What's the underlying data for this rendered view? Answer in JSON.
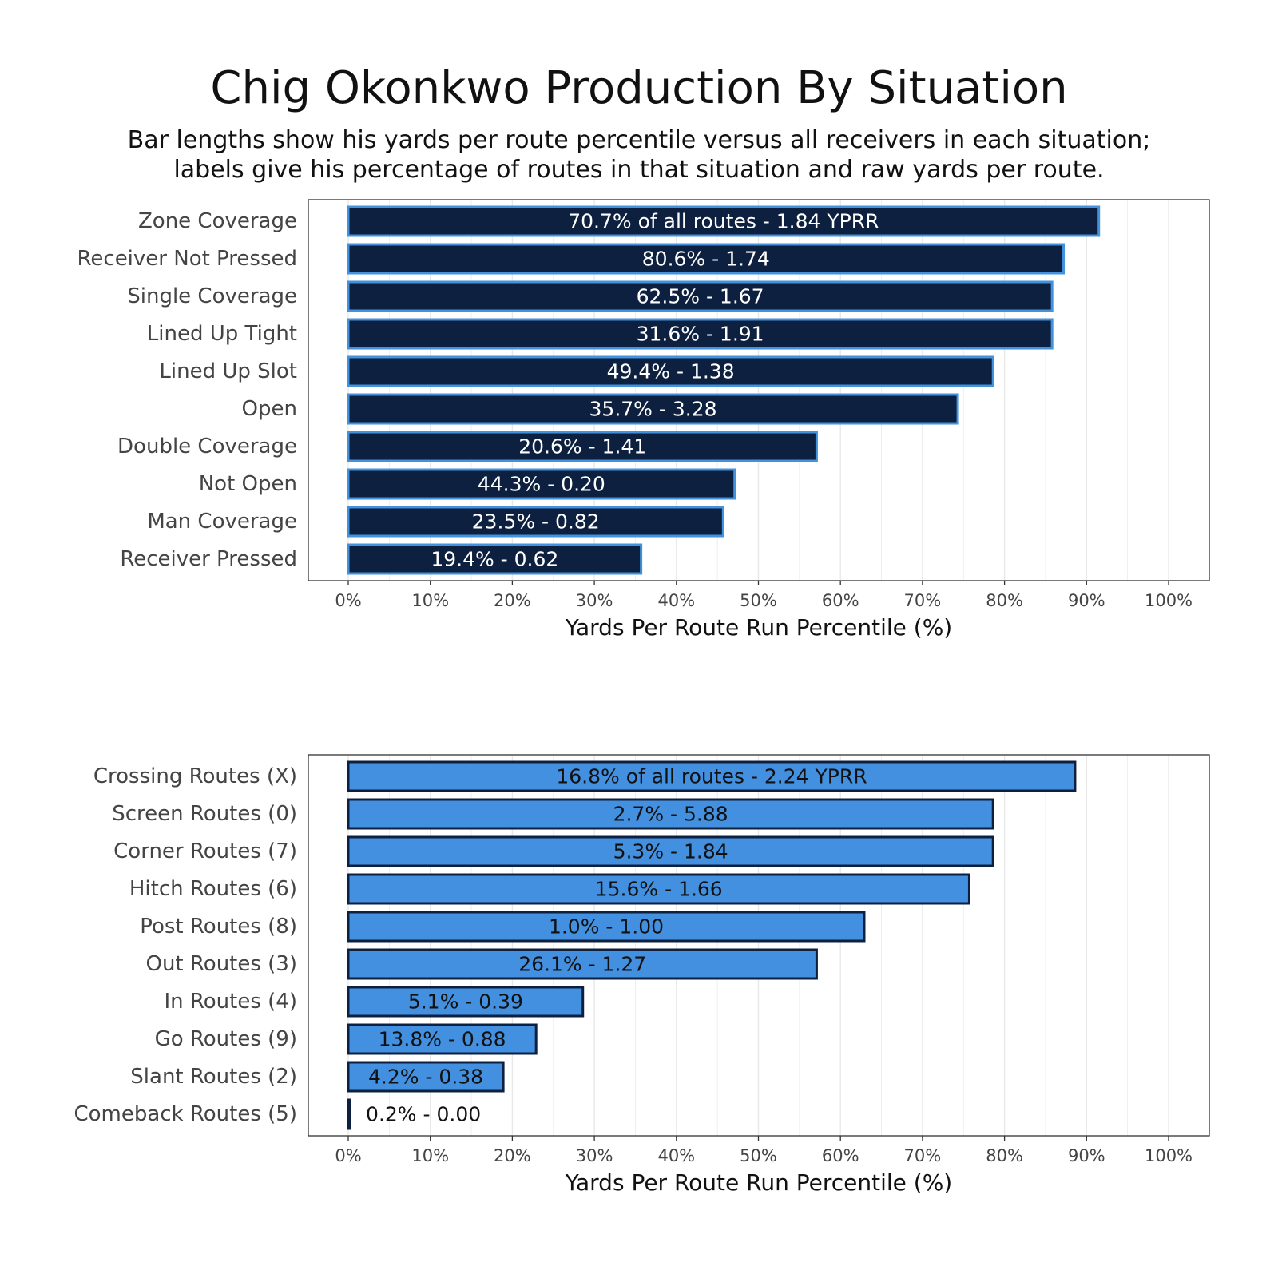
{
  "title": "Chig Okonkwo Production By Situation",
  "subtitle_line1": "Bar lengths show his yards per route percentile versus all receivers in each situation;",
  "subtitle_line2": "labels give his percentage of routes in that situation and raw yards per route.",
  "colors": {
    "top_fill": "#0e203f",
    "top_stroke": "#4292dd",
    "top_label": "#ffffff",
    "bottom_fill": "#4290df",
    "bottom_stroke": "#0e203f",
    "bottom_label": "#111111",
    "grid": "#e8e8e8",
    "panel_border": "#333333"
  },
  "chart_data": [
    {
      "type": "bar",
      "orientation": "horizontal",
      "xlabel": "Yards Per Route Run Percentile (%)",
      "xlim": [
        0,
        100
      ],
      "x_ticks": [
        "0%",
        "10%",
        "20%",
        "30%",
        "40%",
        "50%",
        "60%",
        "70%",
        "80%",
        "90%",
        "100%"
      ],
      "grid": true,
      "categories": [
        "Zone Coverage",
        "Receiver Not Pressed",
        "Single Coverage",
        "Lined Up Tight",
        "Lined Up Slot",
        "Open",
        "Double Coverage",
        "Not Open",
        "Man Coverage",
        "Receiver Pressed"
      ],
      "values": [
        91.5,
        87.2,
        85.8,
        85.8,
        78.6,
        74.3,
        57.1,
        47.1,
        45.7,
        35.7
      ],
      "labels": [
        "70.7% of all routes - 1.84 YPRR",
        "80.6% - 1.74",
        "62.5% - 1.67",
        "31.6% - 1.91",
        "49.4% - 1.38",
        "35.7% - 3.28",
        "20.6% - 1.41",
        "44.3% - 0.20",
        "23.5% - 0.82",
        "19.4% - 0.62"
      ]
    },
    {
      "type": "bar",
      "orientation": "horizontal",
      "xlabel": "Yards Per Route Run Percentile (%)",
      "xlim": [
        0,
        100
      ],
      "x_ticks": [
        "0%",
        "10%",
        "20%",
        "30%",
        "40%",
        "50%",
        "60%",
        "70%",
        "80%",
        "90%",
        "100%"
      ],
      "grid": true,
      "categories": [
        "Crossing Routes (X)",
        "Screen Routes (0)",
        "Corner Routes (7)",
        "Hitch Routes (6)",
        "Post Routes (8)",
        "Out Routes (3)",
        "In Routes (4)",
        "Go Routes (9)",
        "Slant Routes (2)",
        "Comeback Routes (5)"
      ],
      "values": [
        88.6,
        78.6,
        78.6,
        75.7,
        62.9,
        57.1,
        28.6,
        22.9,
        18.9,
        0.2
      ],
      "labels": [
        "16.8% of all routes - 2.24 YPRR",
        "2.7% - 5.88",
        "5.3% - 1.84",
        "15.6% - 1.66",
        "1.0% - 1.00",
        "26.1% - 1.27",
        "5.1% - 0.39",
        "13.8% - 0.88",
        "4.2% - 0.38",
        "0.2% - 0.00"
      ]
    }
  ]
}
